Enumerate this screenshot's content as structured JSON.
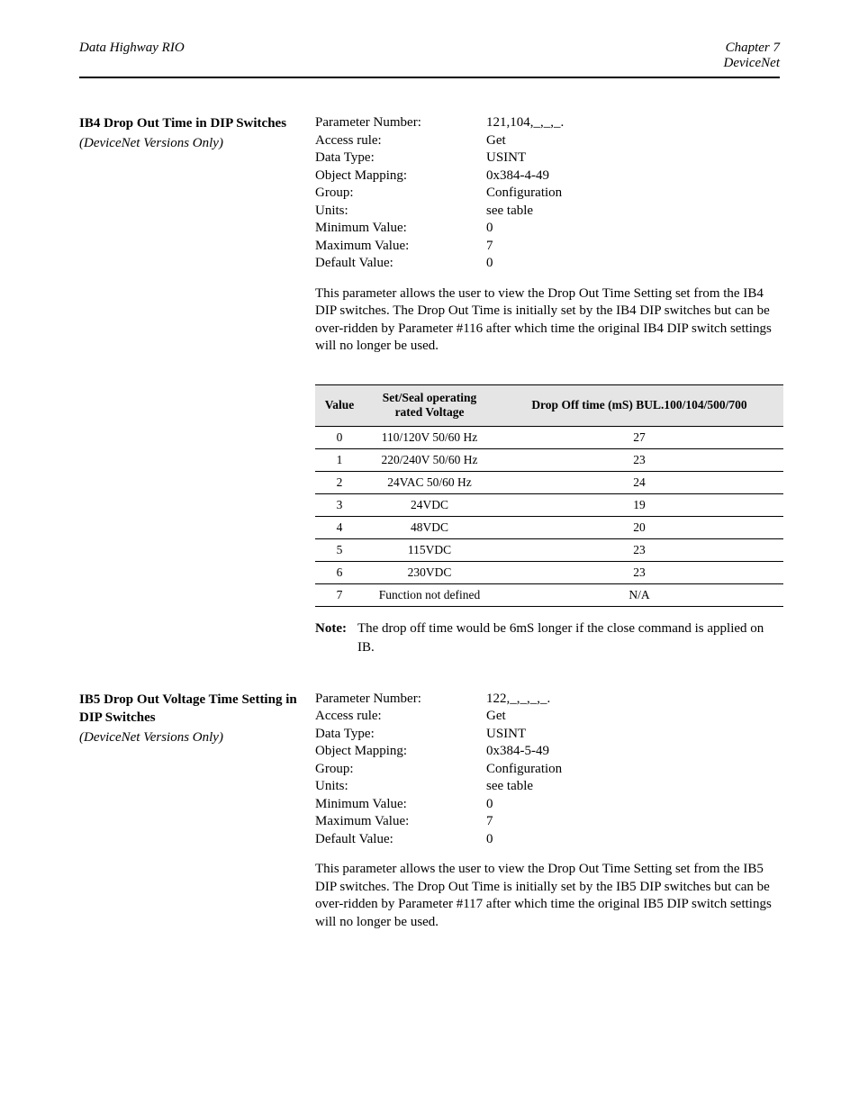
{
  "header": {
    "left": "Data Highway RIO",
    "right_1": "Chapter 7",
    "right_2": "DeviceNet"
  },
  "section_a": {
    "heading": "IB4 Drop Out Time in  DIP Switches",
    "sub": "(DeviceNet Versions Only)",
    "kv": [
      {
        "label": "Parameter Number:",
        "value": "121,104,_,_,_."
      },
      {
        "label": "Access rule:",
        "value": "Get"
      },
      {
        "label": "Data Type:",
        "value": "USINT"
      },
      {
        "label": "Object Mapping:",
        "value": "0x384-4-49"
      },
      {
        "label": "Group:",
        "value": "Configuration"
      },
      {
        "label": "Units:",
        "value": "see table"
      },
      {
        "label": "Minimum Value:",
        "value": "0"
      },
      {
        "label": "Maximum Value:",
        "value": "7"
      },
      {
        "label": "Default Value:",
        "value": "0"
      }
    ],
    "body": "This parameter allows the user to view the Drop Out Time Setting set from the IB4 DIP switches.  The Drop Out Time is initially set by the IB4 DIP switches but can be over-ridden by Parameter #116 after which time the original IB4 DIP switch settings will no longer be used."
  },
  "table": {
    "headers": [
      "Value",
      "Set/Seal operating rated Voltage",
      "Drop Off time (mS) BUL.100/104/500/700"
    ],
    "rows": [
      [
        "0",
        "110/120V 50/60 Hz",
        "27"
      ],
      [
        "1",
        "220/240V 50/60 Hz",
        "23"
      ],
      [
        "2",
        "24VAC 50/60 Hz",
        "24"
      ],
      [
        "3",
        "24VDC",
        "19"
      ],
      [
        "4",
        "48VDC",
        "20"
      ],
      [
        "5",
        "115VDC",
        "23"
      ],
      [
        "6",
        "230VDC",
        "23"
      ],
      [
        "7",
        "Function not defined",
        "N/A"
      ]
    ]
  },
  "note": {
    "label": "Note:",
    "text": "The drop off time would be 6mS longer if the close command is applied on IB."
  },
  "section_b": {
    "heading": "IB5 Drop Out Voltage Time Setting in DIP Switches",
    "sub": "(DeviceNet Versions Only)",
    "kv": [
      {
        "label": "Parameter Number:",
        "value": "122,_,_,_,_."
      },
      {
        "label": "Access rule:",
        "value": "Get"
      },
      {
        "label": "Data Type:",
        "value": "USINT"
      },
      {
        "label": "Object Mapping:",
        "value": "0x384-5-49"
      },
      {
        "label": "Group:",
        "value": "Configuration"
      },
      {
        "label": "Units:",
        "value": "see table"
      },
      {
        "label": "Minimum Value:",
        "value": "0"
      },
      {
        "label": "Maximum Value:",
        "value": "7"
      },
      {
        "label": "Default Value:",
        "value": "0"
      }
    ],
    "body": "This parameter allows the user to view the Drop Out Time Setting set from the IB5 DIP switches.  The Drop Out Time is initially set by the IB5 DIP switches but can be over-ridden by Parameter #117 after which time the original IB5 DIP switch settings will no longer be used."
  }
}
